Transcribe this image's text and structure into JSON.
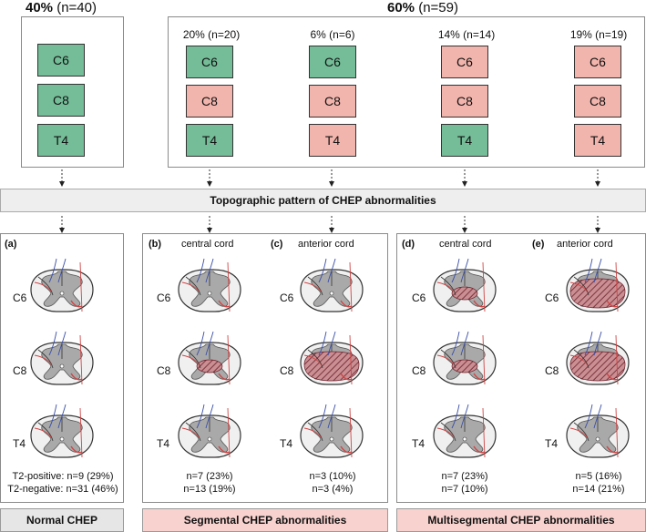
{
  "top": {
    "left_pct": "40%",
    "left_n": "(n=40)",
    "right_pct": "60%",
    "right_n": "(n=59)",
    "columns": [
      {
        "header": "20% (n=20)",
        "levels": [
          "C6",
          "C8",
          "T4"
        ],
        "states": [
          "normal",
          "abnormal",
          "normal"
        ]
      },
      {
        "header": "6% (n=6)",
        "levels": [
          "C6",
          "C8",
          "T4"
        ],
        "states": [
          "normal",
          "abnormal",
          "abnormal"
        ]
      },
      {
        "header": "14% (n=14)",
        "levels": [
          "C6",
          "C8",
          "T4"
        ],
        "states": [
          "abnormal",
          "abnormal",
          "normal"
        ]
      },
      {
        "header": "19% (n=19)",
        "levels": [
          "C6",
          "C8",
          "T4"
        ],
        "states": [
          "abnormal",
          "abnormal",
          "abnormal"
        ]
      }
    ],
    "normal_levels": [
      "C6",
      "C8",
      "T4"
    ]
  },
  "banner": "Topographic pattern of CHEP abnormalities",
  "panels": [
    {
      "letter": "(a)",
      "title": "",
      "stats": [
        "T2-positive: n=9 (29%)",
        "T2-negative: n=31 (46%)"
      ]
    },
    {
      "letter": "(b)",
      "title": "central cord",
      "stats": [
        "n=7 (23%)",
        "n=13 (19%)"
      ]
    },
    {
      "letter": "(c)",
      "title": "anterior cord",
      "stats": [
        "n=3 (10%)",
        "n=3 (4%)"
      ]
    },
    {
      "letter": "(d)",
      "title": "central cord",
      "stats": [
        "n=7 (23%)",
        "n=7 (10%)"
      ]
    },
    {
      "letter": "(e)",
      "title": "anterior cord",
      "stats": [
        "n=5 (16%)",
        "n=14 (21%)"
      ]
    }
  ],
  "levels": [
    "C6",
    "C8",
    "T4"
  ],
  "footers": {
    "normal": "Normal CHEP",
    "segmental": "Segmental CHEP abnormalities",
    "multisegmental": "Multisegmental CHEP abnormalities"
  },
  "colors": {
    "green": "#74bd98",
    "red": "#f2b5ad",
    "footer_gray": "#e6e6e6",
    "footer_pink": "#f8d2cf",
    "banner": "#eeeeee",
    "lesion": "#8b2f3a"
  }
}
